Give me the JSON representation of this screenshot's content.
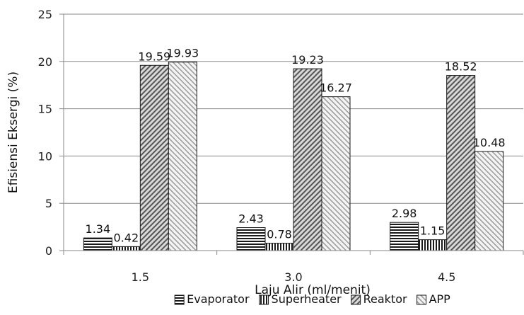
{
  "chart_data": {
    "type": "bar",
    "categories": [
      "1.5",
      "3.0",
      "4.5"
    ],
    "series": [
      {
        "name": "Evaporator",
        "values": [
          1.34,
          2.43,
          2.98
        ],
        "labels": [
          "1.34",
          "2.43",
          "2.98"
        ],
        "pattern": "horizontal"
      },
      {
        "name": "Superheater",
        "values": [
          0.42,
          0.78,
          1.15
        ],
        "labels": [
          "0.42",
          "0.78",
          "1.15"
        ],
        "pattern": "vertical"
      },
      {
        "name": "Reaktor",
        "values": [
          19.59,
          19.23,
          18.52
        ],
        "labels": [
          "19.59",
          "19.23",
          "18.52"
        ],
        "pattern": "diagonal-dense"
      },
      {
        "name": "APP",
        "values": [
          19.93,
          16.27,
          10.48
        ],
        "labels": [
          "19.93",
          "16.27",
          "10.48"
        ],
        "pattern": "diagonal-light"
      }
    ],
    "xlabel": "Laju Alir (ml/menit)",
    "ylabel": "Efisiensi Eksergi (%)",
    "ylim": [
      0,
      25
    ],
    "yticks": [
      "0",
      "5",
      "10",
      "15",
      "20",
      "25"
    ],
    "grid": true,
    "legend": "bottom"
  }
}
